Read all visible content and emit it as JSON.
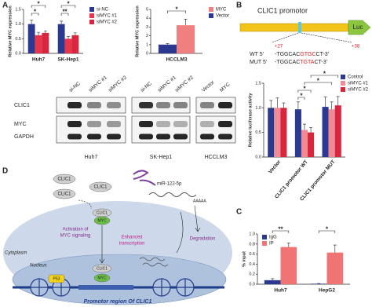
{
  "panel_labels": [
    "A",
    "B",
    "C",
    "D"
  ],
  "chart_data": [
    {
      "type": "bar",
      "ylabel": "Relative MYC expression",
      "categories": [
        "Huh7",
        "SK-Hep1"
      ],
      "series": [
        {
          "name": "si-NC",
          "color": "#2b3990",
          "values": [
            1,
            1
          ],
          "errors": [
            0.13,
            0.1
          ]
        },
        {
          "name": "siMYC #1",
          "color": "#e8354a",
          "values": [
            0.62,
            0.5
          ],
          "errors": [
            0.1,
            0.07
          ]
        },
        {
          "name": "siMYC #2",
          "color": "#d7263d",
          "values": [
            0.7,
            0.62
          ],
          "errors": [
            0.07,
            0.08
          ]
        }
      ],
      "ylim": [
        0,
        1.5
      ],
      "yticks": [
        {
          "value": 0,
          "label": "0.0"
        },
        0.5,
        {
          "value": 1,
          "label": "1.0"
        },
        1.5
      ],
      "legend": "right",
      "annotations": [
        "*",
        "*",
        "*",
        "**"
      ]
    },
    {
      "type": "bar",
      "ylabel": "Relative MYC expression",
      "categories": [
        "HCCLM3"
      ],
      "series": [
        {
          "name": "Vector",
          "color": "#2b3990",
          "values": [
            1
          ],
          "errors": [
            0.12
          ]
        },
        {
          "name": "MYC",
          "color": "#f08080",
          "values": [
            3.2
          ],
          "errors": [
            0.7
          ]
        }
      ],
      "ylim": [
        0,
        5
      ],
      "yticks": [
        0,
        1,
        2,
        3,
        4,
        5
      ],
      "legend": "right",
      "legend_reversed": true,
      "annotations": [
        "*"
      ]
    },
    {
      "type": "bar",
      "ylabel": "Relative luciferase activity",
      "categories": [
        "Vector",
        "CLIC1 promotor WT",
        "CLIC1 promotor MUT"
      ],
      "series": [
        {
          "name": "Control",
          "color": "#2b3990",
          "values": [
            1,
            0.97,
            1.02
          ],
          "errors": [
            0.15,
            0.15,
            0.2
          ]
        },
        {
          "name": "siMYC #1",
          "color": "#f08a94",
          "values": [
            1,
            0.55,
            0.97
          ],
          "errors": [
            0.2,
            0.12,
            0.15
          ]
        },
        {
          "name": "siMYC #2",
          "color": "#d7263d",
          "values": [
            1,
            0.5,
            1.05
          ],
          "errors": [
            0.1,
            0.1,
            0.18
          ]
        }
      ],
      "ylim": [
        0,
        1.5
      ],
      "yticks": [
        {
          "value": 0,
          "label": "0.0"
        },
        0.5,
        {
          "value": 1,
          "label": "1.0"
        },
        1.5
      ],
      "xtick_rotation": -50,
      "legend": "upper right",
      "annotations": [
        "*",
        "*",
        "*",
        "*"
      ]
    },
    {
      "type": "bar",
      "ylabel": "% input",
      "categories": [
        "Huh7",
        "HepG2"
      ],
      "series": [
        {
          "name": "IgG",
          "color": "#2b3990",
          "values": [
            0.08,
            0.01
          ],
          "errors": [
            0.03,
            0.005
          ]
        },
        {
          "name": "IP",
          "color": "#f07474",
          "values": [
            0.74,
            0.63
          ],
          "errors": [
            0.08,
            0.15
          ]
        }
      ],
      "ylim": [
        0,
        1
      ],
      "yticks": [
        {
          "value": 0,
          "label": "0.0"
        },
        0.2,
        0.4,
        0.6,
        0.8,
        {
          "value": 1,
          "label": "1.0"
        }
      ],
      "legend": "upper left",
      "annotations": [
        "**",
        "*"
      ]
    }
  ],
  "blot": {
    "groups": [
      {
        "name": "Huh7",
        "lanes": [
          "si-NC",
          "siMYC #1",
          "siMYC #2"
        ]
      },
      {
        "name": "SK-Hep1",
        "lanes": [
          "si-NC",
          "siMYC #1",
          "siMYC #2"
        ]
      },
      {
        "name": "HCCLM3",
        "lanes": [
          "Vector",
          "MYC"
        ]
      }
    ],
    "rows": [
      "CLIC1",
      "MYC",
      "GAPDH"
    ]
  },
  "promoter": {
    "title": "CLIC1 promotor",
    "reporter": "Luc",
    "start": "+27",
    "end": "+38",
    "wt": {
      "label": "WT 5'",
      "seq": [
        "-TGGCAC",
        "GTGC",
        "CT-3'"
      ]
    },
    "mut": {
      "label": "MUT 5'",
      "seq": [
        "-TGGCAC",
        "TGTA",
        "CT-3'"
      ]
    }
  },
  "diagram": {
    "cytoplasm": "Cytoplasm",
    "nucleus": "Nucleus",
    "mirna": "miR-122-5p",
    "polya": "AAAAA",
    "degradation": "Degradation",
    "activation": [
      "Activation of",
      "MYC signaling"
    ],
    "transcription": [
      "Enhanced",
      "transcription"
    ],
    "promoter_region": "Promotor region Of CLIC1",
    "proteins": [
      "CLIC1",
      "CLIC1",
      "CLIC1",
      "CLIC1",
      "MYC",
      "CLIC1",
      "MYC",
      "P53"
    ]
  }
}
